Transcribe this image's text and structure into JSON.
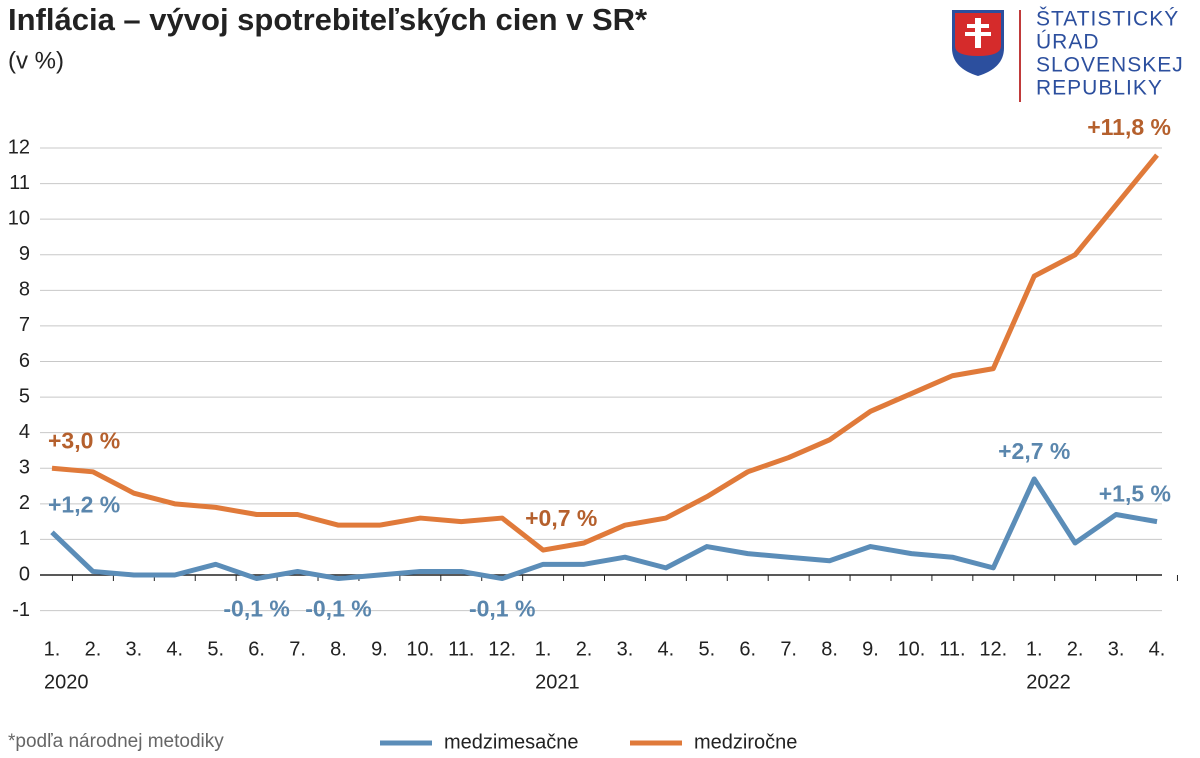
{
  "chart_data": {
    "type": "line",
    "title": "Inflácia – vývoj spotrebiteľských cien v SR*",
    "subtitle": "(v %)",
    "footnote": "*podľa národnej metodiky",
    "categories": [
      "1.",
      "2.",
      "3.",
      "4.",
      "5.",
      "6.",
      "7.",
      "8.",
      "9.",
      "10.",
      "11.",
      "12.",
      "1.",
      "2.",
      "3.",
      "4.",
      "5.",
      "6.",
      "7.",
      "8.",
      "9.",
      "10.",
      "11.",
      "12.",
      "1.",
      "2.",
      "3.",
      "4."
    ],
    "category_groups": [
      {
        "label": "2020",
        "count": 12
      },
      {
        "label": "2021",
        "count": 12
      },
      {
        "label": "2022",
        "count": 4
      }
    ],
    "series": [
      {
        "name": "medzimesačne",
        "color": "#5b8db8",
        "label_color": "#5a86ad",
        "values": [
          1.2,
          0.1,
          0.0,
          0.0,
          0.3,
          -0.1,
          0.1,
          -0.1,
          0.0,
          0.1,
          0.1,
          -0.1,
          0.3,
          0.3,
          0.5,
          0.2,
          0.8,
          0.6,
          0.5,
          0.4,
          0.8,
          0.6,
          0.5,
          0.2,
          2.7,
          0.9,
          1.7,
          1.5
        ],
        "value_labels": [
          "+1,2 %",
          null,
          null,
          null,
          null,
          "-0,1 %",
          null,
          "-0,1 %",
          null,
          null,
          null,
          "-0,1 %",
          null,
          null,
          null,
          null,
          null,
          null,
          null,
          null,
          null,
          null,
          null,
          null,
          "+2,7 %",
          null,
          null,
          "+1,5 %"
        ]
      },
      {
        "name": "medziročne",
        "color": "#e07a3a",
        "label_color": "#b5602d",
        "values": [
          3.0,
          2.9,
          2.3,
          2.0,
          1.9,
          1.7,
          1.7,
          1.4,
          1.4,
          1.6,
          1.5,
          1.6,
          0.7,
          0.9,
          1.4,
          1.6,
          2.2,
          2.9,
          3.3,
          3.8,
          4.6,
          5.1,
          5.6,
          5.8,
          8.4,
          9.0,
          10.4,
          11.8
        ],
        "value_labels": [
          "+3,0 %",
          null,
          null,
          null,
          null,
          null,
          null,
          null,
          null,
          null,
          null,
          null,
          "+0,7 %",
          null,
          null,
          null,
          null,
          null,
          null,
          null,
          null,
          null,
          null,
          null,
          null,
          null,
          null,
          "+11,8 %"
        ]
      }
    ],
    "ylim": [
      -1,
      12
    ],
    "yticks": [
      -1,
      0,
      1,
      2,
      3,
      4,
      5,
      6,
      7,
      8,
      9,
      10,
      11,
      12
    ],
    "grid": true
  },
  "logo": {
    "lines": [
      "ŠTATISTICKÝ",
      "ÚRAD",
      "SLOVENSKEJ",
      "REPUBLIKY"
    ]
  }
}
